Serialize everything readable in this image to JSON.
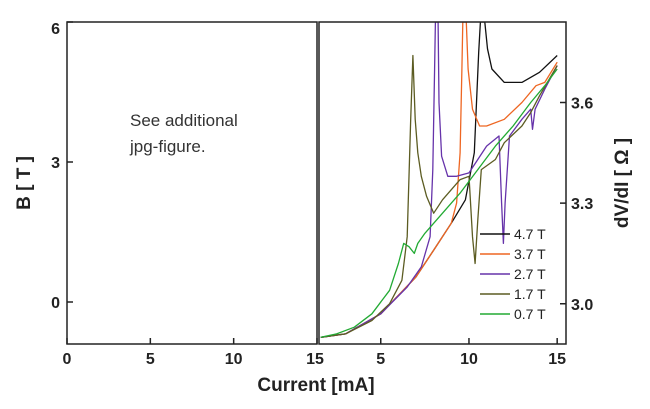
{
  "chart_data": {
    "type": "line",
    "xlabel": "Current [mA]",
    "panels": [
      {
        "id": "left",
        "ylabel": "B [ T ]",
        "xlim": [
          0,
          15
        ],
        "ylim": [
          -0.9,
          6
        ],
        "xticks": [
          0,
          5,
          10,
          15
        ],
        "yticks": [
          0,
          3,
          6
        ],
        "note_lines": [
          "See additional",
          "jpg-figure."
        ]
      },
      {
        "id": "right",
        "ylabel": "dV/dI [ Ω ]",
        "xlim": [
          1.5,
          15.5
        ],
        "ylim": [
          2.88,
          3.84
        ],
        "xticks": [
          5,
          10,
          15
        ],
        "yticks": [
          3.0,
          3.3,
          3.6
        ],
        "legend_position": "bottom-right",
        "series": [
          {
            "name": "4.7 T",
            "color": "#111111",
            "points": [
              [
                1.6,
                2.9
              ],
              [
                3,
                2.91
              ],
              [
                5,
                2.97
              ],
              [
                7,
                3.08
              ],
              [
                8,
                3.16
              ],
              [
                9,
                3.24
              ],
              [
                9.8,
                3.31
              ],
              [
                10.3,
                3.45
              ],
              [
                10.55,
                3.75
              ],
              [
                10.65,
                3.84
              ],
              [
                10.9,
                3.84
              ],
              [
                11.05,
                3.76
              ],
              [
                11.3,
                3.7
              ],
              [
                12,
                3.66
              ],
              [
                13,
                3.66
              ],
              [
                14,
                3.69
              ],
              [
                15,
                3.74
              ]
            ]
          },
          {
            "name": "3.7 T",
            "color": "#ee6622",
            "points": [
              [
                1.6,
                2.9
              ],
              [
                3,
                2.91
              ],
              [
                5,
                2.97
              ],
              [
                7,
                3.08
              ],
              [
                8,
                3.16
              ],
              [
                9,
                3.24
              ],
              [
                9.3,
                3.3
              ],
              [
                9.5,
                3.45
              ],
              [
                9.6,
                3.7
              ],
              [
                9.65,
                3.84
              ],
              [
                9.85,
                3.84
              ],
              [
                9.95,
                3.7
              ],
              [
                10.2,
                3.58
              ],
              [
                10.6,
                3.53
              ],
              [
                11,
                3.53
              ],
              [
                12,
                3.55
              ],
              [
                13,
                3.6
              ],
              [
                13.8,
                3.65
              ],
              [
                14.3,
                3.66
              ],
              [
                15,
                3.72
              ]
            ]
          },
          {
            "name": "2.7 T",
            "color": "#6633aa",
            "points": [
              [
                1.6,
                2.9
              ],
              [
                3,
                2.91
              ],
              [
                5,
                2.97
              ],
              [
                6.5,
                3.05
              ],
              [
                7.3,
                3.11
              ],
              [
                7.8,
                3.2
              ],
              [
                7.95,
                3.4
              ],
              [
                8.05,
                3.7
              ],
              [
                8.1,
                3.84
              ],
              [
                8.25,
                3.84
              ],
              [
                8.3,
                3.6
              ],
              [
                8.45,
                3.44
              ],
              [
                8.8,
                3.38
              ],
              [
                9.3,
                3.38
              ],
              [
                10,
                3.39
              ],
              [
                10.5,
                3.43
              ],
              [
                11,
                3.47
              ],
              [
                11.7,
                3.5
              ],
              [
                11.85,
                3.3
              ],
              [
                11.95,
                3.18
              ],
              [
                12.05,
                3.3
              ],
              [
                12.3,
                3.5
              ],
              [
                13,
                3.55
              ],
              [
                13.5,
                3.58
              ],
              [
                13.6,
                3.52
              ],
              [
                13.75,
                3.58
              ],
              [
                14.3,
                3.64
              ],
              [
                15,
                3.71
              ]
            ]
          },
          {
            "name": "1.7 T",
            "color": "#5c5c22",
            "points": [
              [
                1.6,
                2.9
              ],
              [
                3,
                2.91
              ],
              [
                4.5,
                2.95
              ],
              [
                5.5,
                3.0
              ],
              [
                6.2,
                3.07
              ],
              [
                6.5,
                3.2
              ],
              [
                6.7,
                3.55
              ],
              [
                6.82,
                3.74
              ],
              [
                6.95,
                3.55
              ],
              [
                7.1,
                3.45
              ],
              [
                7.3,
                3.38
              ],
              [
                7.6,
                3.32
              ],
              [
                8,
                3.27
              ],
              [
                8.5,
                3.31
              ],
              [
                9,
                3.34
              ],
              [
                9.5,
                3.37
              ],
              [
                10,
                3.38
              ],
              [
                10.2,
                3.2
              ],
              [
                10.35,
                3.12
              ],
              [
                10.5,
                3.25
              ],
              [
                10.7,
                3.4
              ],
              [
                11.5,
                3.43
              ],
              [
                12,
                3.48
              ],
              [
                13,
                3.53
              ],
              [
                13.5,
                3.57
              ],
              [
                14,
                3.62
              ],
              [
                15,
                3.71
              ]
            ]
          },
          {
            "name": "0.7 T",
            "color": "#22aa33",
            "points": [
              [
                1.6,
                2.9
              ],
              [
                2.5,
                2.91
              ],
              [
                3.5,
                2.93
              ],
              [
                4.5,
                2.97
              ],
              [
                5.5,
                3.04
              ],
              [
                6,
                3.12
              ],
              [
                6.3,
                3.18
              ],
              [
                6.6,
                3.17
              ],
              [
                6.9,
                3.15
              ],
              [
                7.1,
                3.18
              ],
              [
                7.5,
                3.21
              ],
              [
                8.5,
                3.27
              ],
              [
                9.5,
                3.33
              ],
              [
                10.5,
                3.4
              ],
              [
                11.5,
                3.47
              ],
              [
                12.5,
                3.53
              ],
              [
                13.5,
                3.6
              ],
              [
                14.3,
                3.65
              ],
              [
                15,
                3.7
              ]
            ]
          }
        ]
      }
    ]
  }
}
